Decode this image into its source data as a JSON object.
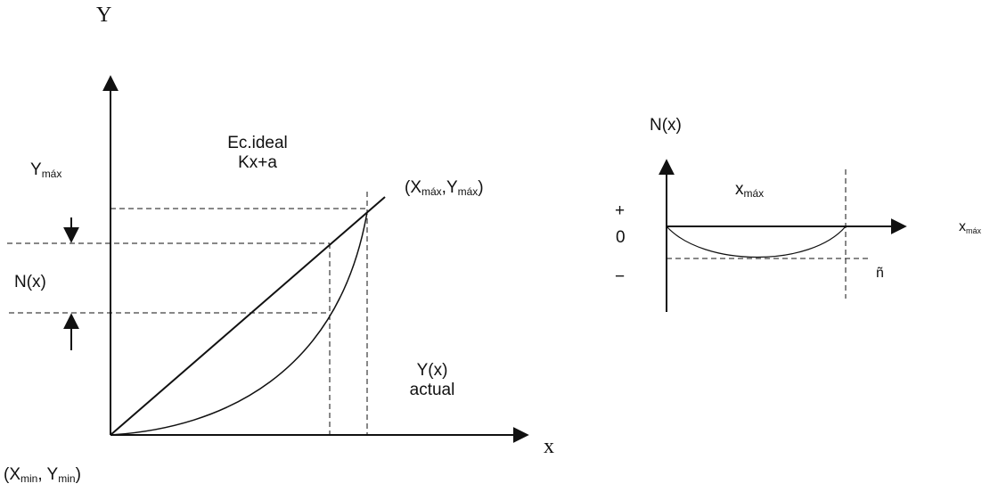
{
  "left_graph": {
    "y_axis_label": "Y",
    "x_axis_label": "x",
    "y_max_label": {
      "main": "Y",
      "sub": "máx"
    },
    "n_x_label": "N(x)",
    "ideal_eq_line1": "Ec.ideal",
    "ideal_eq_line2": "Kx+a",
    "max_point_label": {
      "open": "(X",
      "x_sub": "máx",
      "sep": ",Y",
      "y_sub": "máx",
      "close": ")"
    },
    "actual_line1": "Y(x)",
    "actual_line2": "actual",
    "origin_label": {
      "open": "(X",
      "x_sub": "min",
      "sep": ", Y",
      "y_sub": "min",
      "close": ")"
    }
  },
  "right_graph": {
    "n_axis_label": "N(x)",
    "x_max_label": {
      "main": "x",
      "sub": "máx"
    },
    "plus_label": "+",
    "zero_label": "0",
    "minus_label": "−",
    "n_hat_label": "ñ",
    "x_axis_label": {
      "main": "x",
      "sub": "máx"
    }
  },
  "colors": {
    "stroke": "#111111",
    "background": "#ffffff"
  }
}
